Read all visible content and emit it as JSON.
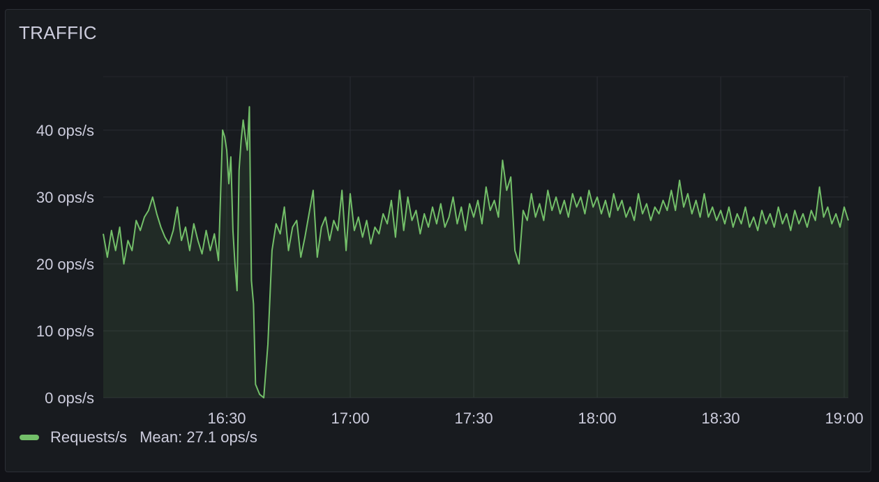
{
  "panel": {
    "title": "TRAFFIC"
  },
  "legend": {
    "series_name": "Requests/s",
    "mean_text": "Mean: 27.1 ops/s",
    "color": "#73bf69"
  },
  "chart_data": {
    "type": "line",
    "title": "TRAFFIC",
    "xlabel": "",
    "ylabel": "",
    "x_range": [
      "16:00",
      "19:01"
    ],
    "ylim": [
      0,
      48
    ],
    "y_ticks": [
      {
        "value": 0,
        "label": "0 ops/s"
      },
      {
        "value": 10,
        "label": "10 ops/s"
      },
      {
        "value": 20,
        "label": "20 ops/s"
      },
      {
        "value": 30,
        "label": "30 ops/s"
      },
      {
        "value": 40,
        "label": "40 ops/s"
      }
    ],
    "x_ticks": [
      {
        "value": "16:30",
        "label": "16:30"
      },
      {
        "value": "17:00",
        "label": "17:00"
      },
      {
        "value": "17:30",
        "label": "17:30"
      },
      {
        "value": "18:00",
        "label": "18:00"
      },
      {
        "value": "18:30",
        "label": "18:30"
      },
      {
        "value": "19:00",
        "label": "19:00"
      }
    ],
    "grid": true,
    "legend_position": "bottom-left",
    "series": [
      {
        "name": "Requests/s",
        "color": "#73bf69",
        "fill": true,
        "points": [
          [
            "16:00",
            24.5
          ],
          [
            "16:01",
            21.0
          ],
          [
            "16:02",
            25.0
          ],
          [
            "16:03",
            22.0
          ],
          [
            "16:04",
            25.5
          ],
          [
            "16:05",
            20.0
          ],
          [
            "16:06",
            23.5
          ],
          [
            "16:07",
            22.0
          ],
          [
            "16:08",
            26.5
          ],
          [
            "16:09",
            25.0
          ],
          [
            "16:10",
            27.0
          ],
          [
            "16:11",
            28.0
          ],
          [
            "16:12",
            30.0
          ],
          [
            "16:13",
            27.5
          ],
          [
            "16:14",
            25.5
          ],
          [
            "16:15",
            24.0
          ],
          [
            "16:16",
            23.0
          ],
          [
            "16:17",
            25.0
          ],
          [
            "16:18",
            28.5
          ],
          [
            "16:19",
            23.5
          ],
          [
            "16:20",
            25.5
          ],
          [
            "16:21",
            22.0
          ],
          [
            "16:22",
            26.0
          ],
          [
            "16:23",
            23.5
          ],
          [
            "16:24",
            21.5
          ],
          [
            "16:25",
            25.0
          ],
          [
            "16:26",
            22.0
          ],
          [
            "16:27",
            24.5
          ],
          [
            "16:28",
            20.5
          ],
          [
            "16:29",
            40.0
          ],
          [
            "16:29.5",
            39.0
          ],
          [
            "16:30",
            37.0
          ],
          [
            "16:30.5",
            32.0
          ],
          [
            "16:31",
            36.0
          ],
          [
            "16:31.5",
            25.0
          ],
          [
            "16:32",
            20.0
          ],
          [
            "16:32.5",
            16.0
          ],
          [
            "16:33",
            34.0
          ],
          [
            "16:33.5",
            38.5
          ],
          [
            "16:34",
            41.5
          ],
          [
            "16:34.5",
            39.0
          ],
          [
            "16:35",
            37.0
          ],
          [
            "16:35.5",
            43.5
          ],
          [
            "16:36",
            17.5
          ],
          [
            "16:36.5",
            14.0
          ],
          [
            "16:37",
            2.0
          ],
          [
            "16:38",
            0.5
          ],
          [
            "16:39",
            0.0
          ],
          [
            "16:40",
            8.0
          ],
          [
            "16:41",
            22.0
          ],
          [
            "16:42",
            26.0
          ],
          [
            "16:43",
            24.5
          ],
          [
            "16:44",
            28.5
          ],
          [
            "16:45",
            22.0
          ],
          [
            "16:46",
            25.5
          ],
          [
            "16:47",
            26.5
          ],
          [
            "16:48",
            21.0
          ],
          [
            "16:49",
            24.0
          ],
          [
            "16:50",
            27.5
          ],
          [
            "16:51",
            31.0
          ],
          [
            "16:52",
            21.0
          ],
          [
            "16:53",
            25.5
          ],
          [
            "16:54",
            27.0
          ],
          [
            "16:55",
            23.5
          ],
          [
            "16:56",
            26.5
          ],
          [
            "16:57",
            25.0
          ],
          [
            "16:58",
            31.0
          ],
          [
            "16:59",
            22.0
          ],
          [
            "17:00",
            30.5
          ],
          [
            "17:01",
            25.0
          ],
          [
            "17:02",
            27.0
          ],
          [
            "17:03",
            24.0
          ],
          [
            "17:04",
            26.5
          ],
          [
            "17:05",
            23.0
          ],
          [
            "17:06",
            25.5
          ],
          [
            "17:07",
            24.5
          ],
          [
            "17:08",
            27.5
          ],
          [
            "17:09",
            26.0
          ],
          [
            "17:10",
            29.5
          ],
          [
            "17:11",
            24.0
          ],
          [
            "17:12",
            31.0
          ],
          [
            "17:13",
            25.0
          ],
          [
            "17:14",
            30.0
          ],
          [
            "17:15",
            26.5
          ],
          [
            "17:16",
            28.0
          ],
          [
            "17:17",
            24.5
          ],
          [
            "17:18",
            27.5
          ],
          [
            "17:19",
            25.5
          ],
          [
            "17:20",
            28.5
          ],
          [
            "17:21",
            26.0
          ],
          [
            "17:22",
            29.0
          ],
          [
            "17:23",
            25.5
          ],
          [
            "17:24",
            27.0
          ],
          [
            "17:25",
            30.0
          ],
          [
            "17:26",
            26.0
          ],
          [
            "17:27",
            28.5
          ],
          [
            "17:28",
            25.0
          ],
          [
            "17:29",
            29.0
          ],
          [
            "17:30",
            27.0
          ],
          [
            "17:31",
            29.5
          ],
          [
            "17:32",
            26.0
          ],
          [
            "17:33",
            31.5
          ],
          [
            "17:34",
            28.0
          ],
          [
            "17:35",
            29.5
          ],
          [
            "17:36",
            27.0
          ],
          [
            "17:37",
            35.5
          ],
          [
            "17:38",
            31.0
          ],
          [
            "17:39",
            33.0
          ],
          [
            "17:40",
            22.0
          ],
          [
            "17:41",
            20.0
          ],
          [
            "17:42",
            28.0
          ],
          [
            "17:43",
            26.5
          ],
          [
            "17:44",
            30.5
          ],
          [
            "17:45",
            27.0
          ],
          [
            "17:46",
            29.0
          ],
          [
            "17:47",
            26.5
          ],
          [
            "17:48",
            31.0
          ],
          [
            "17:49",
            28.0
          ],
          [
            "17:50",
            30.0
          ],
          [
            "17:51",
            27.5
          ],
          [
            "17:52",
            29.5
          ],
          [
            "17:53",
            27.0
          ],
          [
            "17:54",
            30.5
          ],
          [
            "17:55",
            28.5
          ],
          [
            "17:56",
            30.0
          ],
          [
            "17:57",
            27.5
          ],
          [
            "17:58",
            31.0
          ],
          [
            "17:59",
            28.5
          ],
          [
            "18:00",
            30.0
          ],
          [
            "18:01",
            27.5
          ],
          [
            "18:02",
            29.5
          ],
          [
            "18:03",
            27.0
          ],
          [
            "18:04",
            30.5
          ],
          [
            "18:05",
            28.0
          ],
          [
            "18:06",
            29.5
          ],
          [
            "18:07",
            27.0
          ],
          [
            "18:08",
            28.5
          ],
          [
            "18:09",
            26.5
          ],
          [
            "18:10",
            30.5
          ],
          [
            "18:11",
            27.5
          ],
          [
            "18:12",
            29.0
          ],
          [
            "18:13",
            26.5
          ],
          [
            "18:14",
            28.5
          ],
          [
            "18:15",
            27.5
          ],
          [
            "18:16",
            29.5
          ],
          [
            "18:17",
            28.0
          ],
          [
            "18:18",
            31.0
          ],
          [
            "18:19",
            28.0
          ],
          [
            "18:20",
            32.5
          ],
          [
            "18:21",
            28.5
          ],
          [
            "18:22",
            30.5
          ],
          [
            "18:23",
            27.5
          ],
          [
            "18:24",
            29.5
          ],
          [
            "18:25",
            27.0
          ],
          [
            "18:26",
            30.5
          ],
          [
            "18:27",
            27.0
          ],
          [
            "18:28",
            28.5
          ],
          [
            "18:29",
            26.5
          ],
          [
            "18:30",
            28.0
          ],
          [
            "18:31",
            26.0
          ],
          [
            "18:32",
            28.5
          ],
          [
            "18:33",
            25.5
          ],
          [
            "18:34",
            27.5
          ],
          [
            "18:35",
            26.0
          ],
          [
            "18:36",
            28.5
          ],
          [
            "18:37",
            25.5
          ],
          [
            "18:38",
            27.0
          ],
          [
            "18:39",
            25.0
          ],
          [
            "18:40",
            28.0
          ],
          [
            "18:41",
            26.0
          ],
          [
            "18:42",
            27.5
          ],
          [
            "18:43",
            25.5
          ],
          [
            "18:44",
            28.5
          ],
          [
            "18:45",
            26.0
          ],
          [
            "18:46",
            27.5
          ],
          [
            "18:47",
            25.0
          ],
          [
            "18:48",
            28.0
          ],
          [
            "18:49",
            26.0
          ],
          [
            "18:50",
            27.5
          ],
          [
            "18:51",
            25.5
          ],
          [
            "18:52",
            28.0
          ],
          [
            "18:53",
            26.5
          ],
          [
            "18:54",
            31.5
          ],
          [
            "18:55",
            27.0
          ],
          [
            "18:56",
            28.5
          ],
          [
            "18:57",
            26.0
          ],
          [
            "18:58",
            27.5
          ],
          [
            "18:59",
            25.5
          ],
          [
            "19:00",
            28.5
          ],
          [
            "19:01",
            26.5
          ]
        ]
      }
    ]
  }
}
